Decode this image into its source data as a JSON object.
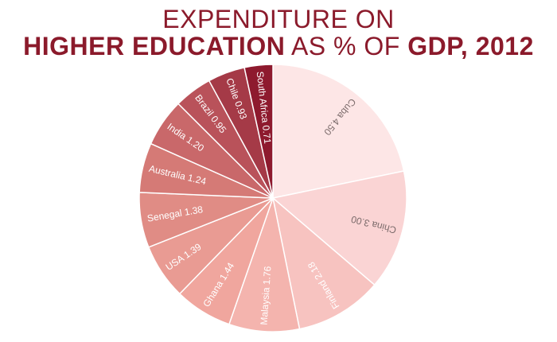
{
  "title": {
    "line1": "EXPENDITURE ON",
    "line2_bold1": "HIGHER EDUCATION",
    "line2_mid": " AS % OF ",
    "line2_bold2": "GDP, 2012"
  },
  "chart_data": {
    "type": "pie",
    "title": "EXPENDITURE ON HIGHER EDUCATION AS % OF GDP, 2012",
    "legend": "none",
    "slices": [
      {
        "label": "Cuba",
        "value": 4.5,
        "display": "4.50",
        "color": "#fde6e6"
      },
      {
        "label": "China",
        "value": 3.0,
        "display": "3.00",
        "color": "#fad4d4"
      },
      {
        "label": "Finland",
        "value": 2.18,
        "display": "2.18",
        "color": "#f7c3c0"
      },
      {
        "label": "Malaysia",
        "value": 1.76,
        "display": "1.76",
        "color": "#f4b4ae"
      },
      {
        "label": "Ghana",
        "value": 1.44,
        "display": "1.44",
        "color": "#f0a69e"
      },
      {
        "label": "USA",
        "value": 1.39,
        "display": "1.39",
        "color": "#e99b93"
      },
      {
        "label": "Senegal",
        "value": 1.38,
        "display": "1.38",
        "color": "#e08c85"
      },
      {
        "label": "Australia",
        "value": 1.24,
        "display": "1.24",
        "color": "#d57a76"
      },
      {
        "label": "India",
        "value": 1.2,
        "display": "1.20",
        "color": "#c9686a"
      },
      {
        "label": "Brazil",
        "value": 0.95,
        "display": "0.95",
        "color": "#b9525a"
      },
      {
        "label": "Chile",
        "value": 0.93,
        "display": "0.93",
        "color": "#a53a47"
      },
      {
        "label": "South Africa",
        "value": 0.71,
        "display": "0.71",
        "color": "#8e1a2e"
      }
    ]
  }
}
